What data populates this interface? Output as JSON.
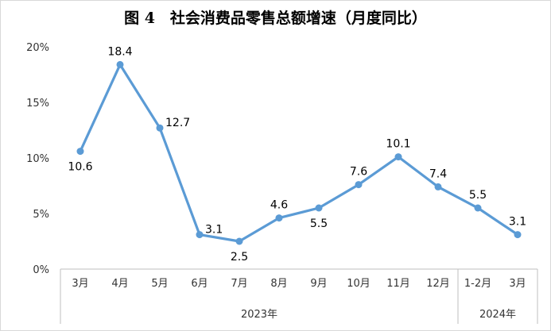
{
  "title": "图 4　社会消费品零售总额增速（月度同比）",
  "chart_data": {
    "type": "line",
    "title": "图 4　社会消费品零售总额增速（月度同比）",
    "categories": [
      "3月",
      "4月",
      "5月",
      "6月",
      "7月",
      "8月",
      "9月",
      "10月",
      "11月",
      "12月",
      "1-2月",
      "3月"
    ],
    "groups": [
      {
        "label": "2023年",
        "count": 10
      },
      {
        "label": "2024年",
        "count": 2
      }
    ],
    "series": [
      {
        "values": [
          10.6,
          18.4,
          12.7,
          3.1,
          2.5,
          4.6,
          5.5,
          7.6,
          10.1,
          7.4,
          5.5,
          3.1
        ],
        "data_labels": [
          "10.6",
          "18.4",
          "12.7",
          "3.1",
          "2.5",
          "4.6",
          "5.5",
          "7.6",
          "10.1",
          "7.4",
          "5.5",
          "3.1"
        ],
        "label_position": [
          "below",
          "above",
          "right",
          "right",
          "below",
          "above",
          "below",
          "above",
          "above",
          "above",
          "above",
          "above"
        ],
        "color": "#5B9BD5"
      }
    ],
    "yticks": [
      "0%",
      "5%",
      "10%",
      "15%",
      "20%"
    ],
    "ylim": [
      0,
      20
    ],
    "grid": false,
    "legend": "none"
  }
}
